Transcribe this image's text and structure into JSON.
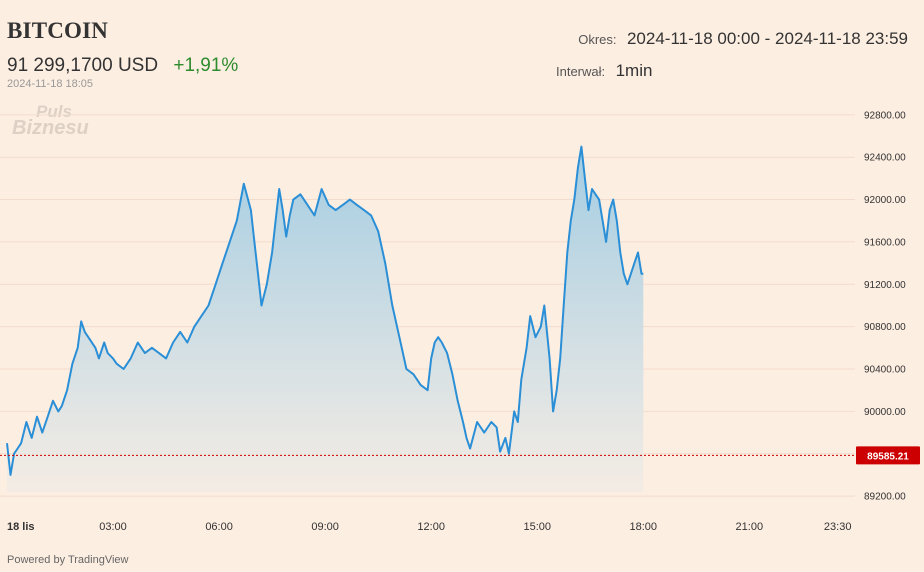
{
  "header": {
    "title": "BITCOIN",
    "price": "91 299,1700 USD",
    "change": "+1,91%",
    "timestamp": "2024-11-18 18:05",
    "period_label": "Okres:",
    "period_value": "2024-11-18 00:00 - 2024-11-18 23:59",
    "interval_label": "Interwał:",
    "interval_value": "1min"
  },
  "logo": {
    "line1": "Puls",
    "line2": "Biznesu"
  },
  "footer": {
    "powered_by": "Powered by TradingView"
  },
  "colors": {
    "line": "#2a8fd6",
    "fill_top": "#9fcbe3",
    "fill_bottom": "#f3ece4",
    "reference": "#cc0000",
    "background": "#fdeee2",
    "grid": "#f2dccd"
  },
  "chart_data": {
    "type": "area",
    "x_unit": "hours since 2024-11-18 00:00",
    "xlim": [
      0,
      23.99
    ],
    "ylim": [
      89050,
      92940
    ],
    "yticks": [
      89200,
      89600,
      90000,
      90400,
      90800,
      91200,
      91600,
      92000,
      92400,
      92800
    ],
    "ytick_labels": [
      "89200.00",
      "89600.00",
      "90000.00",
      "90400.00",
      "90800.00",
      "91200.00",
      "91600.00",
      "92000.00",
      "92400.00",
      "92800.00"
    ],
    "xticks": [
      0,
      3,
      6,
      9,
      12,
      15,
      18,
      21,
      23.5
    ],
    "xtick_labels": [
      "18 lis",
      "03:00",
      "06:00",
      "09:00",
      "12:00",
      "15:00",
      "18:00",
      "21:00",
      "23:30"
    ],
    "reference_line": {
      "value": 89585.21,
      "label": "89585.21"
    },
    "grid": true,
    "series": [
      {
        "x": [
          0,
          0.1,
          0.2,
          0.3,
          0.4,
          0.55,
          0.7,
          0.85,
          1.0,
          1.15,
          1.3,
          1.45,
          1.55,
          1.7,
          1.85,
          2.0,
          2.1,
          2.2,
          2.3,
          2.5,
          2.6,
          2.75,
          2.85,
          3.0,
          3.1,
          3.3,
          3.5,
          3.7,
          3.9,
          4.1,
          4.3,
          4.5,
          4.7,
          4.9,
          5.1,
          5.3,
          5.5,
          5.7,
          5.9,
          6.1,
          6.3,
          6.5,
          6.7,
          6.9,
          7.0,
          7.1,
          7.2,
          7.35,
          7.5,
          7.6,
          7.7,
          7.8,
          7.9,
          8.0,
          8.1,
          8.3,
          8.5,
          8.7,
          8.9,
          9.1,
          9.3,
          9.5,
          9.7,
          9.9,
          10.1,
          10.3,
          10.5,
          10.7,
          10.9,
          11.1,
          11.3,
          11.5,
          11.7,
          11.9,
          12.0,
          12.1,
          12.2,
          12.3,
          12.45,
          12.6,
          12.75,
          12.9,
          13.0,
          13.1,
          13.3,
          13.5,
          13.7,
          13.85,
          13.95,
          14.1,
          14.2,
          14.35,
          14.45,
          14.55,
          14.7,
          14.8,
          14.95,
          15.1,
          15.2,
          15.35,
          15.45,
          15.55,
          15.65,
          15.75,
          15.85,
          15.95,
          16.05,
          16.15,
          16.25,
          16.35,
          16.45,
          16.55,
          16.65,
          16.75,
          16.85,
          16.95,
          17.05,
          17.15,
          17.25,
          17.35,
          17.45,
          17.55,
          17.65,
          17.75,
          17.85,
          17.95,
          18.0
        ],
        "y": [
          89700,
          89400,
          89600,
          89650,
          89700,
          89900,
          89750,
          89950,
          89800,
          89950,
          90100,
          90000,
          90050,
          90200,
          90450,
          90600,
          90850,
          90750,
          90700,
          90600,
          90500,
          90650,
          90550,
          90500,
          90450,
          90400,
          90500,
          90650,
          90550,
          90600,
          90550,
          90500,
          90650,
          90750,
          90650,
          90800,
          90900,
          91000,
          91200,
          91400,
          91600,
          91800,
          92150,
          91900,
          91600,
          91300,
          91000,
          91200,
          91500,
          91800,
          92100,
          91900,
          91650,
          91850,
          92000,
          92050,
          91950,
          91850,
          92100,
          91950,
          91900,
          91950,
          92000,
          91950,
          91900,
          91850,
          91700,
          91400,
          91000,
          90700,
          90400,
          90350,
          90250,
          90200,
          90500,
          90650,
          90700,
          90650,
          90550,
          90350,
          90100,
          89900,
          89750,
          89650,
          89900,
          89800,
          89900,
          89850,
          89620,
          89750,
          89600,
          90000,
          89900,
          90300,
          90600,
          90900,
          90700,
          90800,
          91000,
          90500,
          90000,
          90200,
          90500,
          91000,
          91500,
          91800,
          92000,
          92300,
          92500,
          92200,
          91900,
          92100,
          92050,
          92000,
          91800,
          91600,
          91900,
          92000,
          91800,
          91500,
          91300,
          91200,
          91300,
          91400,
          91500,
          91300,
          91299
        ]
      }
    ]
  }
}
